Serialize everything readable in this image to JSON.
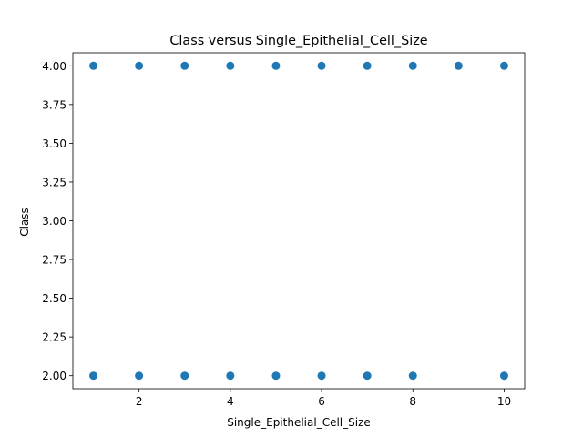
{
  "chart_data": {
    "type": "scatter",
    "title": "Class versus Single_Epithelial_Cell_Size",
    "xlabel": "Single_Epithelial_Cell_Size",
    "ylabel": "Class",
    "xlim": [
      0.55,
      10.45
    ],
    "ylim": [
      1.916,
      4.084
    ],
    "xticks": [
      2,
      4,
      6,
      8,
      10
    ],
    "xtick_labels": [
      "2",
      "4",
      "6",
      "8",
      "10"
    ],
    "yticks": [
      2.0,
      2.25,
      2.5,
      2.75,
      3.0,
      3.25,
      3.5,
      3.75,
      4.0
    ],
    "ytick_labels": [
      "2.00",
      "2.25",
      "2.50",
      "2.75",
      "3.00",
      "3.25",
      "3.50",
      "3.75",
      "4.00"
    ],
    "grid": false,
    "marker_color": "#1f77b4",
    "points": [
      {
        "x": 1,
        "y": 4
      },
      {
        "x": 2,
        "y": 4
      },
      {
        "x": 3,
        "y": 4
      },
      {
        "x": 4,
        "y": 4
      },
      {
        "x": 5,
        "y": 4
      },
      {
        "x": 6,
        "y": 4
      },
      {
        "x": 7,
        "y": 4
      },
      {
        "x": 8,
        "y": 4
      },
      {
        "x": 9,
        "y": 4
      },
      {
        "x": 10,
        "y": 4
      },
      {
        "x": 1,
        "y": 2
      },
      {
        "x": 2,
        "y": 2
      },
      {
        "x": 3,
        "y": 2
      },
      {
        "x": 4,
        "y": 2
      },
      {
        "x": 5,
        "y": 2
      },
      {
        "x": 6,
        "y": 2
      },
      {
        "x": 7,
        "y": 2
      },
      {
        "x": 8,
        "y": 2
      },
      {
        "x": 10,
        "y": 2
      }
    ]
  }
}
